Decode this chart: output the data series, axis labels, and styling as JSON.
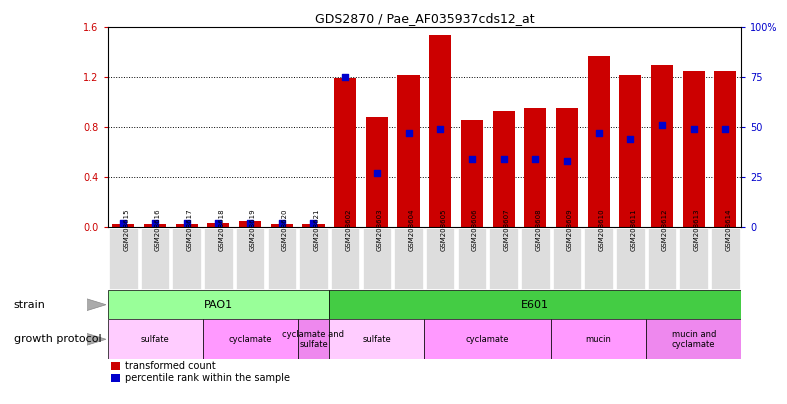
{
  "title": "GDS2870 / Pae_AF035937cds12_at",
  "samples": [
    "GSM208615",
    "GSM208616",
    "GSM208617",
    "GSM208618",
    "GSM208619",
    "GSM208620",
    "GSM208621",
    "GSM208602",
    "GSM208603",
    "GSM208604",
    "GSM208605",
    "GSM208606",
    "GSM208607",
    "GSM208608",
    "GSM208609",
    "GSM208610",
    "GSM208611",
    "GSM208612",
    "GSM208613",
    "GSM208614"
  ],
  "transformed_count": [
    0.02,
    0.02,
    0.02,
    0.03,
    0.05,
    0.02,
    0.02,
    1.19,
    0.88,
    1.22,
    1.54,
    0.86,
    0.93,
    0.95,
    0.95,
    1.37,
    1.22,
    1.3,
    1.25,
    1.25
  ],
  "percentile_rank_pct": [
    2,
    2,
    2,
    2,
    2,
    2,
    2,
    75,
    27,
    47,
    49,
    34,
    34,
    34,
    33,
    47,
    44,
    51,
    49,
    49
  ],
  "ylim_left": [
    0,
    1.6
  ],
  "ylim_right": [
    0,
    100
  ],
  "yticks_left": [
    0,
    0.4,
    0.8,
    1.2,
    1.6
  ],
  "yticks_right": [
    0,
    25,
    50,
    75,
    100
  ],
  "bar_color": "#cc0000",
  "dot_color": "#0000cc",
  "strain_groups": [
    {
      "label": "PAO1",
      "start": 0,
      "end": 7,
      "color": "#99ff99"
    },
    {
      "label": "E601",
      "start": 7,
      "end": 20,
      "color": "#44cc44"
    }
  ],
  "protocol_groups": [
    {
      "label": "sulfate",
      "start": 0,
      "end": 3,
      "color": "#ffccff"
    },
    {
      "label": "cyclamate",
      "start": 3,
      "end": 6,
      "color": "#ff99ff"
    },
    {
      "label": "cyclamate and\nsulfate",
      "start": 6,
      "end": 7,
      "color": "#ee88ee"
    },
    {
      "label": "sulfate",
      "start": 7,
      "end": 10,
      "color": "#ffccff"
    },
    {
      "label": "cyclamate",
      "start": 10,
      "end": 14,
      "color": "#ff99ff"
    },
    {
      "label": "mucin",
      "start": 14,
      "end": 17,
      "color": "#ff99ff"
    },
    {
      "label": "mucin and\ncyclamate",
      "start": 17,
      "end": 20,
      "color": "#ee88ee"
    }
  ],
  "strain_label": "strain",
  "protocol_label": "growth protocol",
  "legend_items": [
    {
      "color": "#cc0000",
      "label": "transformed count"
    },
    {
      "color": "#0000cc",
      "label": "percentile rank within the sample"
    }
  ],
  "bg_color": "#ffffff",
  "tick_label_color_left": "#cc0000",
  "tick_label_color_right": "#0000cc",
  "xtick_bg_color": "#dddddd"
}
